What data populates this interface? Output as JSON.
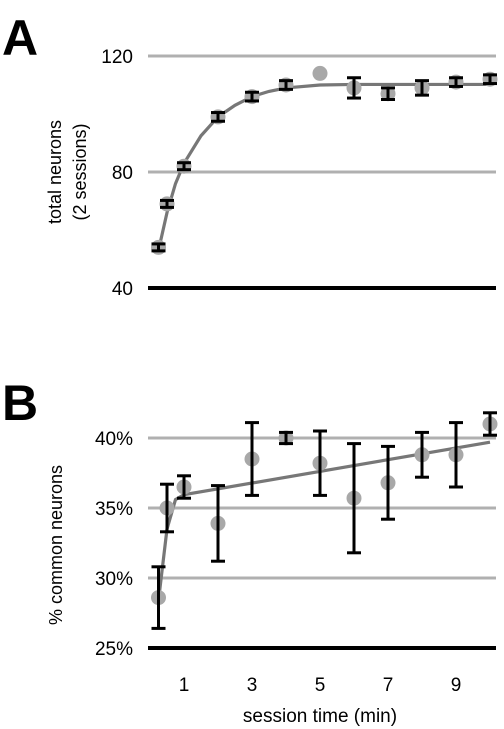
{
  "chart_data": [
    {
      "panel": "A",
      "type": "scatter",
      "ylabel_lines": [
        "total neurons",
        "(2 sessions)"
      ],
      "yticks": [
        40,
        80,
        120
      ],
      "ytick_labels": [
        "40",
        "80",
        "120"
      ],
      "ylim": [
        40,
        120
      ],
      "xlim": [
        0,
        10
      ],
      "grid": true,
      "x": [
        0.25,
        0.5,
        1,
        2,
        3,
        4,
        5,
        6,
        7,
        8,
        9,
        10
      ],
      "y": [
        54,
        69,
        82,
        99,
        106,
        110,
        114,
        109,
        107,
        109,
        111,
        112
      ],
      "err": [
        1.2,
        1.2,
        1.2,
        1.5,
        1.5,
        1.5,
        0,
        3.5,
        2,
        2.5,
        1.5,
        1.5
      ],
      "fit": [
        [
          0.25,
          53
        ],
        [
          0.5,
          66
        ],
        [
          0.75,
          76
        ],
        [
          1,
          83
        ],
        [
          1.5,
          92.5
        ],
        [
          2,
          99
        ],
        [
          2.5,
          103
        ],
        [
          3,
          106
        ],
        [
          3.5,
          107.8
        ],
        [
          4,
          109
        ],
        [
          5,
          110
        ],
        [
          6,
          110.2
        ],
        [
          7,
          110.2
        ],
        [
          8,
          110.2
        ],
        [
          9,
          110.2
        ],
        [
          10,
          110.2
        ]
      ]
    },
    {
      "panel": "B",
      "type": "scatter",
      "ylabel": "% common neurons",
      "xlabel": "session time (min)",
      "yticks": [
        25,
        30,
        35,
        40
      ],
      "ytick_labels": [
        "25%",
        "30%",
        "35%",
        "40%"
      ],
      "xticks": [
        1,
        3,
        5,
        7,
        9
      ],
      "xtick_labels": [
        "1",
        "3",
        "5",
        "7",
        "9"
      ],
      "ylim": [
        25,
        42.5
      ],
      "xlim": [
        0,
        10
      ],
      "grid": true,
      "x": [
        0.25,
        0.5,
        1,
        2,
        3,
        4,
        5,
        6,
        7,
        8,
        9,
        10
      ],
      "y": [
        28.6,
        35,
        36.5,
        33.9,
        38.5,
        40,
        38.2,
        35.7,
        36.8,
        38.8,
        38.8,
        41
      ],
      "err": [
        2.2,
        1.7,
        0.8,
        2.7,
        2.6,
        0.4,
        2.3,
        3.9,
        2.6,
        1.6,
        2.3,
        0.8
      ],
      "fit": [
        [
          0.25,
          28.4
        ],
        [
          0.5,
          33.5
        ],
        [
          0.75,
          35.6
        ],
        [
          1,
          35.95
        ],
        [
          10,
          39.7
        ]
      ]
    }
  ]
}
